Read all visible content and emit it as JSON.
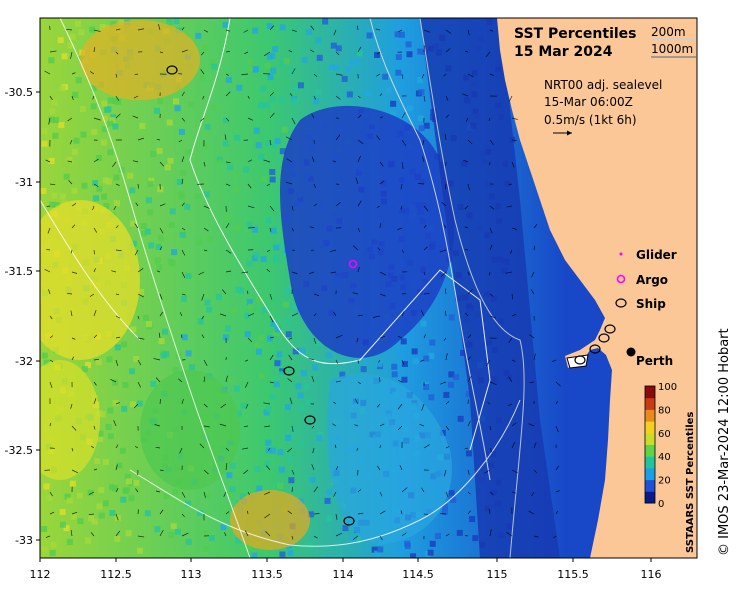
{
  "title_line1": "SST Percentiles",
  "title_line2": "15 Mar 2024",
  "depth_labels": [
    "200m",
    "1000m"
  ],
  "current_info": {
    "line1": "NRT00 adj. sealevel",
    "line2": "15-Mar 06:00Z",
    "line3": "0.5m/s (1kt 6h)"
  },
  "legend": [
    {
      "label": "Glider",
      "color": "#ff00ff",
      "marker": "dot"
    },
    {
      "label": "Argo",
      "color": "#ff00ff",
      "marker": "ring"
    },
    {
      "label": "Ship",
      "color": "#000000",
      "marker": "ellipse"
    }
  ],
  "city_label": "Perth",
  "colorbar": {
    "title": "SSTAARS SST Percentiles",
    "ticks": [
      "100",
      "80",
      "60",
      "40",
      "20",
      "0"
    ],
    "colors": [
      "#0a1a8a",
      "#1f4fd8",
      "#1aa0e6",
      "#22c4a0",
      "#5fd24a",
      "#c8dc28",
      "#f2d21e",
      "#e88a1e",
      "#c83c14",
      "#8c0a0a"
    ]
  },
  "credit": "© IMOS 23-Mar-2024 12:00 Hobart",
  "x_ticks": [
    "112",
    "112.5",
    "113",
    "113.5",
    "114",
    "114.5",
    "115",
    "115.5",
    "116"
  ],
  "y_ticks": [
    "-30.5",
    "-31",
    "-31.5",
    "-32",
    "-32.5",
    "-33"
  ],
  "colors": {
    "land": "#fbc797",
    "contour": "#ffffff"
  }
}
